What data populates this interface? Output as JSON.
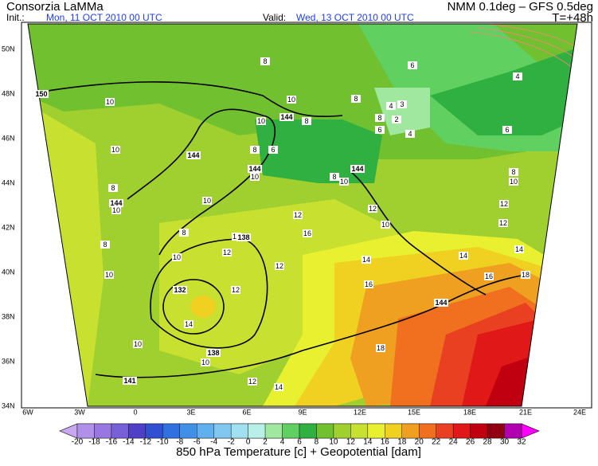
{
  "header": {
    "org": "Consorzia LaMMa",
    "init_label": "Init.:",
    "init": "Mon, 11 OCT 2010  00 UTC",
    "valid_label": "Valid:",
    "valid": "Wed, 13 OCT 2010  00 UTC",
    "model": "NMM 0.1deg – GFS 0.5deg",
    "lead": "T=+48h"
  },
  "lat_labels": [
    "50N",
    "48N",
    "46N",
    "44N",
    "42N",
    "40N",
    "38N",
    "36N",
    "34N"
  ],
  "lon_labels": [
    "6W",
    "3W",
    "0",
    "3E",
    "6E",
    "9E",
    "12E",
    "15E",
    "18E",
    "21E",
    "24E"
  ],
  "colorbar": {
    "values": [
      -20,
      -18,
      -16,
      -14,
      -12,
      -10,
      -8,
      -6,
      -4,
      -2,
      0,
      2,
      4,
      6,
      8,
      10,
      12,
      14,
      16,
      18,
      20,
      22,
      24,
      26,
      28,
      30,
      32
    ],
    "colors": [
      "#b090e8",
      "#9878e0",
      "#7860d8",
      "#5040c8",
      "#3050d0",
      "#3070e0",
      "#4090e8",
      "#60b0f0",
      "#80c8f0",
      "#a0e0f0",
      "#b8f0e8",
      "#a0e8a0",
      "#60d060",
      "#30b040",
      "#70c030",
      "#a0d030",
      "#c8e030",
      "#e8f030",
      "#f0d020",
      "#f0a020",
      "#f07020",
      "#e84020",
      "#e01818",
      "#c00010",
      "#900010",
      "#b000b0"
    ],
    "below_color": "#c8a8f0",
    "above_color": "#ff00ff"
  },
  "contour_labels": [
    "150",
    "8",
    "6",
    "4",
    "10",
    "10",
    "8",
    "4",
    "3",
    "2",
    "8",
    "144",
    "8",
    "10",
    "6",
    "4",
    "6",
    "10",
    "8",
    "6",
    "144",
    "144",
    "10",
    "8",
    "10",
    "144",
    "8",
    "10",
    "8",
    "144",
    "10",
    "10",
    "12",
    "12",
    "10",
    "12",
    "12",
    "8",
    "10",
    "138",
    "16",
    "8",
    "12",
    "10",
    "12",
    "14",
    "14",
    "14",
    "10",
    "132",
    "12",
    "16",
    "16",
    "18",
    "144",
    "14",
    "10",
    "138",
    "10",
    "18",
    "141",
    "12",
    "14"
  ],
  "footer": "850 hPa Temperature [c] + Geopotential [dam]"
}
